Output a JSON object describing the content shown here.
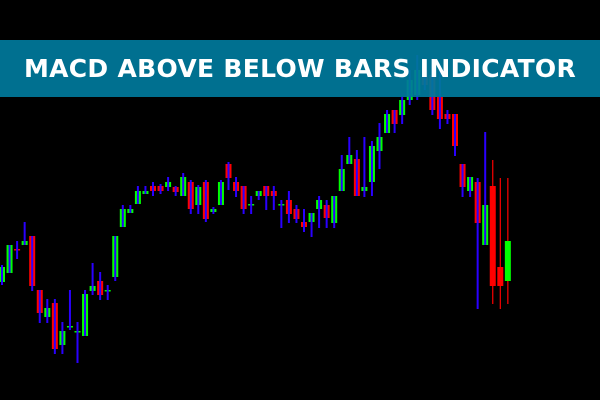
{
  "banner": {
    "title": "MACD ABOVE BELOW BARS INDICATOR"
  },
  "colors": {
    "background": "#000000",
    "bull": "#00ff00",
    "bear": "#ff0000",
    "wick": "#2a00ff",
    "banner": "#00799b"
  },
  "chart_data": {
    "type": "candlestick",
    "title": "",
    "grid": false,
    "ylim": [
      0,
      400
    ],
    "candles": [
      [
        118,
        135,
        115,
        133
      ],
      [
        127,
        155,
        127,
        155
      ],
      [
        151,
        159,
        141,
        150
      ],
      [
        155,
        178,
        155,
        159
      ],
      [
        164,
        164,
        109,
        114
      ],
      [
        110,
        110,
        77,
        87
      ],
      [
        83,
        101,
        77,
        92
      ],
      [
        97,
        101,
        46,
        51
      ],
      [
        55,
        78,
        46,
        69
      ],
      [
        74,
        110,
        70,
        74
      ],
      [
        69,
        78,
        37,
        69
      ],
      [
        64,
        110,
        64,
        106
      ],
      [
        109,
        137,
        105,
        114
      ],
      [
        119,
        128,
        100,
        105
      ],
      [
        110,
        115,
        100,
        110
      ],
      [
        123,
        164,
        119,
        164
      ],
      [
        173,
        195,
        173,
        191
      ],
      [
        187,
        195,
        187,
        191
      ],
      [
        196,
        214,
        196,
        209
      ],
      [
        206,
        214,
        206,
        209
      ],
      [
        214,
        218,
        204,
        209
      ],
      [
        214,
        216,
        206,
        209
      ],
      [
        213,
        223,
        209,
        218
      ],
      [
        213,
        214,
        204,
        208
      ],
      [
        204,
        227,
        204,
        223
      ],
      [
        218,
        220,
        186,
        191
      ],
      [
        195,
        215,
        186,
        213
      ],
      [
        218,
        220,
        178,
        181
      ],
      [
        188,
        193,
        186,
        191
      ],
      [
        195,
        220,
        195,
        218
      ],
      [
        236,
        238,
        210,
        222
      ],
      [
        218,
        223,
        203,
        209
      ],
      [
        214,
        214,
        186,
        191
      ],
      [
        196,
        204,
        186,
        196
      ],
      [
        204,
        209,
        200,
        209
      ],
      [
        214,
        214,
        190,
        204
      ],
      [
        209,
        214,
        190,
        204
      ],
      [
        196,
        200,
        172,
        196
      ],
      [
        200,
        209,
        177,
        186
      ],
      [
        191,
        195,
        177,
        181
      ],
      [
        178,
        191,
        168,
        173
      ],
      [
        178,
        187,
        163,
        187
      ],
      [
        191,
        204,
        172,
        200
      ],
      [
        195,
        200,
        172,
        182
      ],
      [
        177,
        204,
        172,
        204
      ],
      [
        209,
        245,
        209,
        231
      ],
      [
        236,
        263,
        236,
        245
      ],
      [
        241,
        250,
        204,
        204
      ],
      [
        209,
        263,
        203,
        213
      ],
      [
        218,
        259,
        204,
        254
      ],
      [
        249,
        277,
        231,
        263
      ],
      [
        267,
        290,
        267,
        286
      ],
      [
        290,
        290,
        267,
        276
      ],
      [
        285,
        303,
        276,
        300
      ],
      [
        300,
        330,
        295,
        320
      ],
      [
        305,
        345,
        300,
        330
      ],
      [
        330,
        340,
        310,
        315
      ],
      [
        325,
        335,
        285,
        290
      ],
      [
        303,
        330,
        271,
        281
      ],
      [
        286,
        290,
        276,
        281
      ],
      [
        286,
        286,
        244,
        254
      ],
      [
        236,
        236,
        203,
        213
      ],
      [
        209,
        223,
        203,
        223
      ],
      [
        218,
        222,
        91,
        177
      ],
      [
        155,
        268,
        155,
        195
      ],
      [
        214,
        240,
        96,
        114
      ],
      [
        133,
        222,
        91,
        114
      ],
      [
        119,
        222,
        96,
        159
      ]
    ],
    "solid_from_index": 65
  }
}
